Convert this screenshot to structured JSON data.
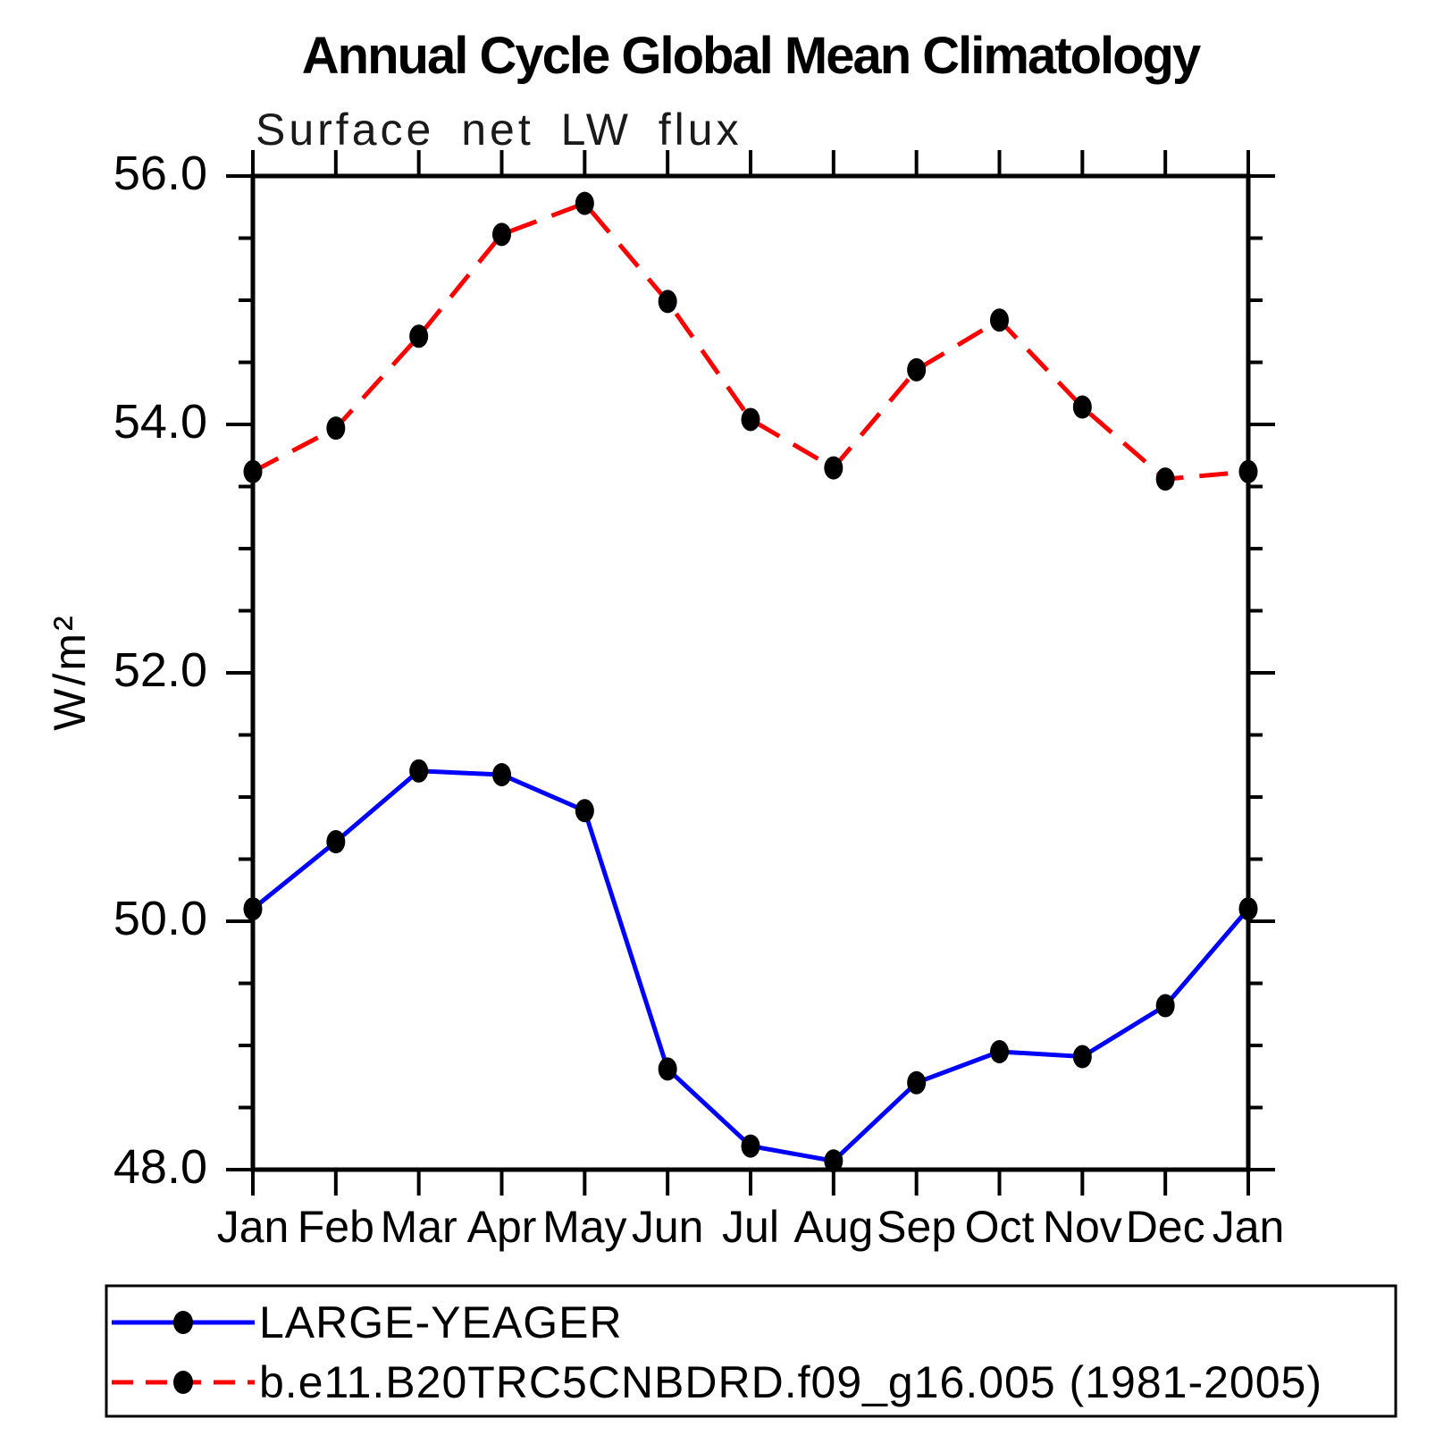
{
  "chart_data": {
    "type": "line",
    "title": "Annual Cycle Global Mean Climatology",
    "subtitle": "Surface net LW flux",
    "ylabel": "W/m²",
    "xlabel": "",
    "categories": [
      "Jan",
      "Feb",
      "Mar",
      "Apr",
      "May",
      "Jun",
      "Jul",
      "Aug",
      "Sep",
      "Oct",
      "Nov",
      "Dec",
      "Jan"
    ],
    "ylim": [
      48.0,
      56.0
    ],
    "ytick_values": [
      48.0,
      50.0,
      52.0,
      54.0,
      56.0
    ],
    "ytick_labels": [
      "48.0",
      "50.0",
      "52.0",
      "54.0",
      "56.0"
    ],
    "ytick_minor_step": 0.5,
    "grid": false,
    "legend_position": "bottom-left",
    "series": [
      {
        "name": "LARGE-YEAGER",
        "color": "#0000ff",
        "line_style": "solid",
        "marker": "filled-circle",
        "marker_color": "#000000",
        "values": [
          50.1,
          50.64,
          51.21,
          51.18,
          50.89,
          48.81,
          48.19,
          48.07,
          48.7,
          48.95,
          48.91,
          49.32,
          50.1
        ]
      },
      {
        "name": "b.e11.B20TRC5CNBDRD.f09_g16.005 (1981-2005)",
        "color": "#ff0000",
        "line_style": "dashed",
        "marker": "filled-circle",
        "marker_color": "#000000",
        "values": [
          53.62,
          53.97,
          54.71,
          55.53,
          55.78,
          54.99,
          54.04,
          53.65,
          54.44,
          54.84,
          54.14,
          53.56,
          53.62
        ]
      }
    ]
  }
}
